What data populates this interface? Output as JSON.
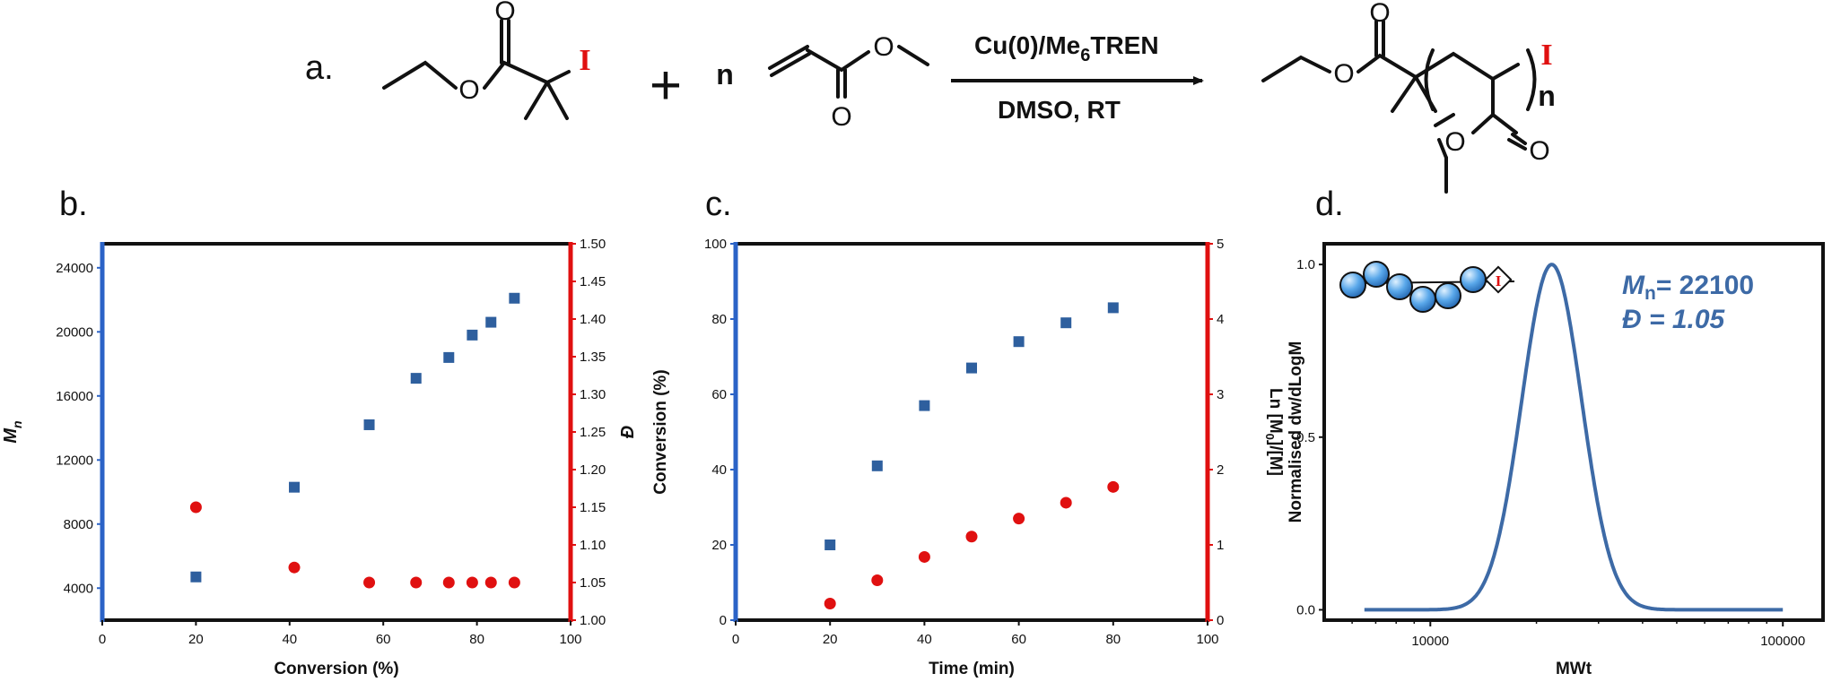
{
  "panel_labels": {
    "a": "a.",
    "b": "b.",
    "c": "c.",
    "d": "d."
  },
  "scheme": {
    "initiator_halogen": "I",
    "plus": "+",
    "n": "n",
    "catalyst": "Cu(0)/Me",
    "catalyst_sub": "6",
    "catalyst_end": "TREN",
    "conditions": "DMSO, RT",
    "product_halogen": "I",
    "product_n": "n",
    "o_label": "O"
  },
  "colors": {
    "blue": "#2e5f9e",
    "red": "#e01010",
    "curve": "#3d6aa6",
    "axis_blue": "#2b63c7",
    "axis_red": "#e01010",
    "halogen": "#e01010"
  },
  "chart_data": [
    {
      "type": "scatter",
      "panel": "b",
      "xlabel": "Conversion (%)",
      "ylabel": "M",
      "ylabel_sub": "n",
      "y2label": "Đ",
      "xlim": [
        0,
        100
      ],
      "ylim": [
        2000,
        25500
      ],
      "y2lim": [
        1.0,
        1.5
      ],
      "xticks": [
        0,
        20,
        40,
        60,
        80,
        100
      ],
      "yticks": [
        4000,
        8000,
        12000,
        16000,
        20000,
        24000
      ],
      "y2ticks": [
        "1.00",
        "1.05",
        "1.10",
        "1.15",
        "1.20",
        "1.25",
        "1.30",
        "1.35",
        "1.40",
        "1.45",
        "1.50"
      ],
      "series": [
        {
          "axis": "left",
          "marker": "square",
          "x": [
            20,
            41,
            57,
            67,
            74,
            79,
            83,
            88
          ],
          "values": [
            4700,
            10300,
            14200,
            17100,
            18400,
            19800,
            20600,
            22100
          ]
        },
        {
          "axis": "right",
          "marker": "circle",
          "x": [
            20,
            41,
            57,
            67,
            74,
            79,
            83,
            88
          ],
          "values": [
            1.15,
            1.07,
            1.05,
            1.05,
            1.05,
            1.05,
            1.05,
            1.05
          ]
        }
      ]
    },
    {
      "type": "scatter",
      "panel": "c",
      "xlabel": "Time (min)",
      "ylabel": "Conversion (%)",
      "y2label": "Ln [M",
      "y2label_sub": "0",
      "y2label_end": "]/[M]",
      "xlim": [
        0,
        100
      ],
      "ylim": [
        0,
        100
      ],
      "y2lim": [
        0,
        5
      ],
      "xticks": [
        0,
        20,
        40,
        60,
        80,
        100
      ],
      "yticks": [
        0,
        20,
        40,
        60,
        80,
        100
      ],
      "y2ticks": [
        0,
        1,
        2,
        3,
        4,
        5
      ],
      "series": [
        {
          "axis": "left",
          "marker": "square",
          "x": [
            20,
            30,
            40,
            50,
            60,
            70,
            80
          ],
          "values": [
            20,
            41,
            57,
            67,
            74,
            79,
            83
          ]
        },
        {
          "axis": "right",
          "marker": "circle",
          "x": [
            20,
            30,
            40,
            50,
            60,
            70,
            80
          ],
          "values": [
            0.22,
            0.53,
            0.84,
            1.11,
            1.35,
            1.56,
            1.77
          ]
        }
      ]
    },
    {
      "type": "line",
      "panel": "d",
      "xlabel": "MWt",
      "ylabel": "Normalised dw/dLogM",
      "xscale": "log",
      "xlim": [
        5000,
        130000
      ],
      "ylim": [
        -0.03,
        1.06
      ],
      "xticks": [
        "10000",
        "100000"
      ],
      "yticks": [
        "0.0",
        "0.5",
        "1.0"
      ],
      "peak_mw": 22100,
      "curve_sigma_log10": 0.085,
      "curve_range": [
        6500,
        100000
      ],
      "annotation": {
        "mn_label": "M",
        "mn_sub": "n",
        "mn_value": "= 22100",
        "d_label": "Đ = 1.05"
      },
      "icon_halogen": "I"
    }
  ]
}
